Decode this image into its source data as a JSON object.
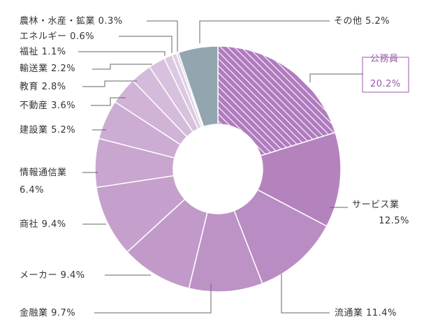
{
  "chart_data": {
    "type": "pie",
    "donut": true,
    "slices": [
      {
        "label": "公務員",
        "value": 20.2,
        "value_text": "20.2%",
        "color": "#b07bbf",
        "hatched": true,
        "highlight": true
      },
      {
        "label": "サービス業",
        "value": 12.5,
        "value_text": "12.5%",
        "color": "#b483bd"
      },
      {
        "label": "流通業",
        "value": 11.4,
        "value_text": "11.4%",
        "color": "#b98cc3"
      },
      {
        "label": "金融業",
        "value": 9.7,
        "value_text": "9.7%",
        "color": "#bd93c6"
      },
      {
        "label": "メーカー",
        "value": 9.4,
        "value_text": "9.4%",
        "color": "#c29ac9"
      },
      {
        "label": "商社",
        "value": 9.4,
        "value_text": "9.4%",
        "color": "#c5a0cc"
      },
      {
        "label": "情報通信業",
        "value": 6.4,
        "value_text": "6.4%",
        "color": "#c9a6cf"
      },
      {
        "label": "建設業",
        "value": 5.2,
        "value_text": "5.2%",
        "color": "#ccacd2"
      },
      {
        "label": "不動産",
        "value": 3.6,
        "value_text": "3.6%",
        "color": "#d0b3d6"
      },
      {
        "label": "教育",
        "value": 2.8,
        "value_text": "2.8%",
        "color": "#d4badb"
      },
      {
        "label": "輸送業",
        "value": 2.2,
        "value_text": "2.2%",
        "color": "#d8c1de"
      },
      {
        "label": "福祉",
        "value": 1.1,
        "value_text": "1.1%",
        "color": "#dcc8e1"
      },
      {
        "label": "エネルギー",
        "value": 0.6,
        "value_text": "0.6%",
        "color": "#e0cfe5"
      },
      {
        "label": "農林・水産・鉱業",
        "value": 0.3,
        "value_text": "0.3%",
        "color": "#e4d6e8"
      },
      {
        "label": "その他",
        "value": 5.2,
        "value_text": "5.2%",
        "color": "#93a6b0"
      }
    ]
  }
}
